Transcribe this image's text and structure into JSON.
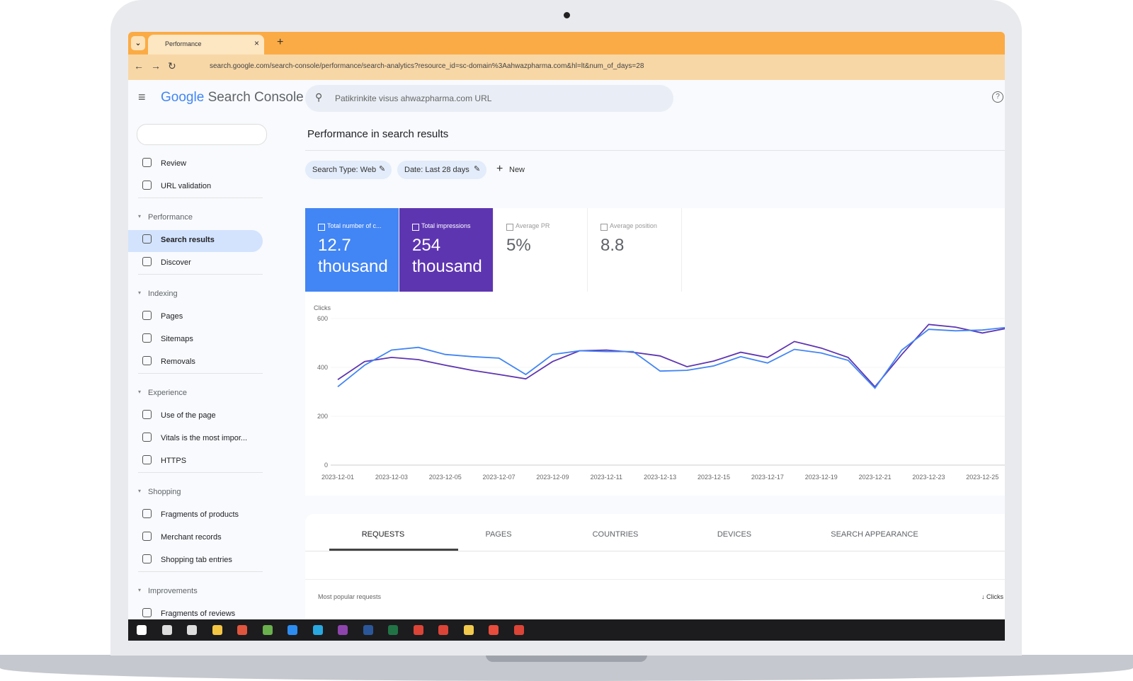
{
  "browser": {
    "tab_title": "Performance",
    "url": "search.google.com/search-console/performance/search-analytics?resource_id=sc-domain%3Aahwazpharma.com&hl=lt&num_of_days=28"
  },
  "header": {
    "logo_google": "Google",
    "logo_product": "Search Console",
    "search_placeholder": "Patikrinkite visus ahwazpharma.com URL"
  },
  "sidebar": {
    "top": [
      "Review",
      "URL validation"
    ],
    "sections": [
      {
        "title": "Performance",
        "items": [
          "Search results",
          "Discover"
        ]
      },
      {
        "title": "Indexing",
        "items": [
          "Pages",
          "Sitemaps",
          "Removals"
        ]
      },
      {
        "title": "Experience",
        "items": [
          "Use of the page",
          "Vitals is the most impor...",
          "HTTPS"
        ]
      },
      {
        "title": "Shopping",
        "items": [
          "Fragments of products",
          "Merchant records",
          "Shopping tab entries"
        ]
      },
      {
        "title": "Improvements",
        "items": [
          "Fragments of reviews"
        ]
      }
    ]
  },
  "main": {
    "title": "Performance in search results",
    "filters": [
      "Search Type: Web",
      "Date: Last 28 days"
    ],
    "new_button": "New",
    "metrics": [
      {
        "label": "Total number of c...",
        "value": "12.7 thousand",
        "color": "#4285f4"
      },
      {
        "label": "Total impressions",
        "value": "254 thousand",
        "color": "#5e35b1"
      },
      {
        "label": "Average PR",
        "value": "5%"
      },
      {
        "label": "Average position",
        "value": "8.8"
      }
    ]
  },
  "chart": {
    "type": "line",
    "y_label": "Clicks",
    "ylim": [
      0,
      600
    ],
    "yticks": [
      0,
      200,
      400,
      600
    ],
    "categories": [
      "2023-12-01",
      null,
      "2023-12-03",
      null,
      "2023-12-05",
      null,
      "2023-12-07",
      null,
      "2023-12-09",
      null,
      "2023-12-11",
      null,
      "2023-12-13",
      null,
      "2023-12-15",
      null,
      "2023-12-17",
      null,
      "2023-12-19",
      null,
      "2023-12-21",
      null,
      "2023-12-23",
      null,
      "2023-12-25",
      null
    ],
    "series": [
      {
        "color": "#5e35b1",
        "values": [
          350,
          424,
          441,
          432,
          409,
          388,
          371,
          353,
          424,
          468,
          471,
          462,
          447,
          403,
          426,
          462,
          441,
          506,
          479,
          441,
          321,
          453,
          576,
          565,
          541,
          562
        ]
      },
      {
        "color": "#4285f4",
        "values": [
          321,
          409,
          471,
          482,
          453,
          444,
          438,
          371,
          453,
          468,
          465,
          465,
          385,
          388,
          406,
          444,
          418,
          474,
          459,
          429,
          315,
          471,
          556,
          550,
          553,
          565
        ]
      }
    ]
  },
  "tabs": [
    "REQUESTS",
    "PAGES",
    "COUNTRIES",
    "DEVICES",
    "SEARCH APPEARANCE"
  ],
  "table": {
    "title": "Most popular requests",
    "sort_column": "Clicks"
  }
}
